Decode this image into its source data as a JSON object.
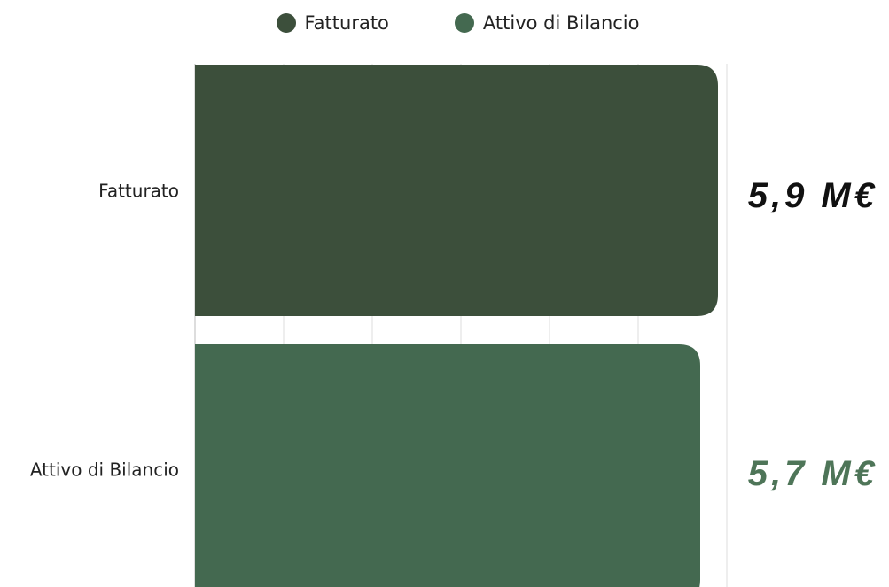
{
  "chart_data": {
    "type": "bar",
    "orientation": "horizontal",
    "categories": [
      "Fatturato",
      "Attivo di Bilancio"
    ],
    "series": [
      {
        "name": "Fatturato",
        "values": [
          5.9,
          null
        ],
        "color": "#3C4F3B"
      },
      {
        "name": "Attivo di Bilancio",
        "values": [
          null,
          5.7
        ],
        "color": "#446950"
      }
    ],
    "value_labels": [
      "5,9 M€",
      "5,7 M€"
    ],
    "value_label_colors": [
      "#111111",
      "#4E7558"
    ],
    "xlim": [
      0,
      6
    ],
    "legend": "top-center",
    "grid": true,
    "title": "",
    "xlabel": "",
    "ylabel": ""
  }
}
